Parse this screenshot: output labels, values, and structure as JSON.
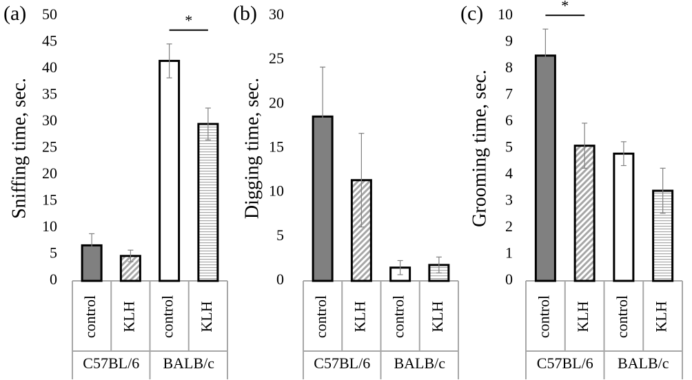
{
  "chart_data": [
    {
      "type": "bar",
      "panel_label": "(a)",
      "y_label": "Sniffing time, sec.",
      "categories": [
        "control",
        "KLH",
        "control",
        "KLH"
      ],
      "groups": [
        "C57BL/6",
        "BALB/c"
      ],
      "values": [
        6.7,
        4.7,
        41.5,
        29.6
      ],
      "errors": [
        2.2,
        1.1,
        3.2,
        3.0
      ],
      "colors": [
        "#808080",
        "#a6a6a6",
        "#ffffff",
        "#a6a6a6"
      ],
      "patterns": [
        "solid",
        "diagonal",
        "solid",
        "horizontal"
      ],
      "ylim": [
        0,
        50
      ],
      "yticks": [
        0,
        5,
        10,
        15,
        20,
        25,
        30,
        35,
        40,
        45,
        50
      ],
      "grid": false,
      "annotations": [
        {
          "text": "*",
          "group": 1
        }
      ]
    },
    {
      "type": "bar",
      "panel_label": "(b)",
      "y_label": "Digging time, sec.",
      "categories": [
        "control",
        "KLH",
        "control",
        "KLH"
      ],
      "groups": [
        "C57BL/6",
        "BALB/c"
      ],
      "values": [
        18.6,
        11.4,
        1.5,
        1.8
      ],
      "errors": [
        5.6,
        5.3,
        0.8,
        0.9
      ],
      "colors": [
        "#808080",
        "#a6a6a6",
        "#ffffff",
        "#a6a6a6"
      ],
      "patterns": [
        "solid",
        "diagonal",
        "solid",
        "horizontal"
      ],
      "ylim": [
        0,
        30
      ],
      "yticks": [
        0,
        5,
        10,
        15,
        20,
        25,
        30
      ],
      "grid": false,
      "annotations": []
    },
    {
      "type": "bar",
      "panel_label": "(c)",
      "y_label": "Grooming time, sec.",
      "categories": [
        "control",
        "KLH",
        "control",
        "KLH"
      ],
      "groups": [
        "C57BL/6",
        "BALB/c"
      ],
      "values": [
        8.5,
        5.1,
        4.8,
        3.4
      ],
      "errors": [
        1.0,
        0.85,
        0.45,
        0.85
      ],
      "colors": [
        "#808080",
        "#a6a6a6",
        "#ffffff",
        "#a6a6a6"
      ],
      "patterns": [
        "solid",
        "diagonal",
        "solid",
        "horizontal"
      ],
      "ylim": [
        0,
        10
      ],
      "yticks": [
        0,
        1,
        2,
        3,
        4,
        5,
        6,
        7,
        8,
        9,
        10
      ],
      "grid": false,
      "annotations": [
        {
          "text": "*",
          "group": 0
        }
      ]
    }
  ]
}
